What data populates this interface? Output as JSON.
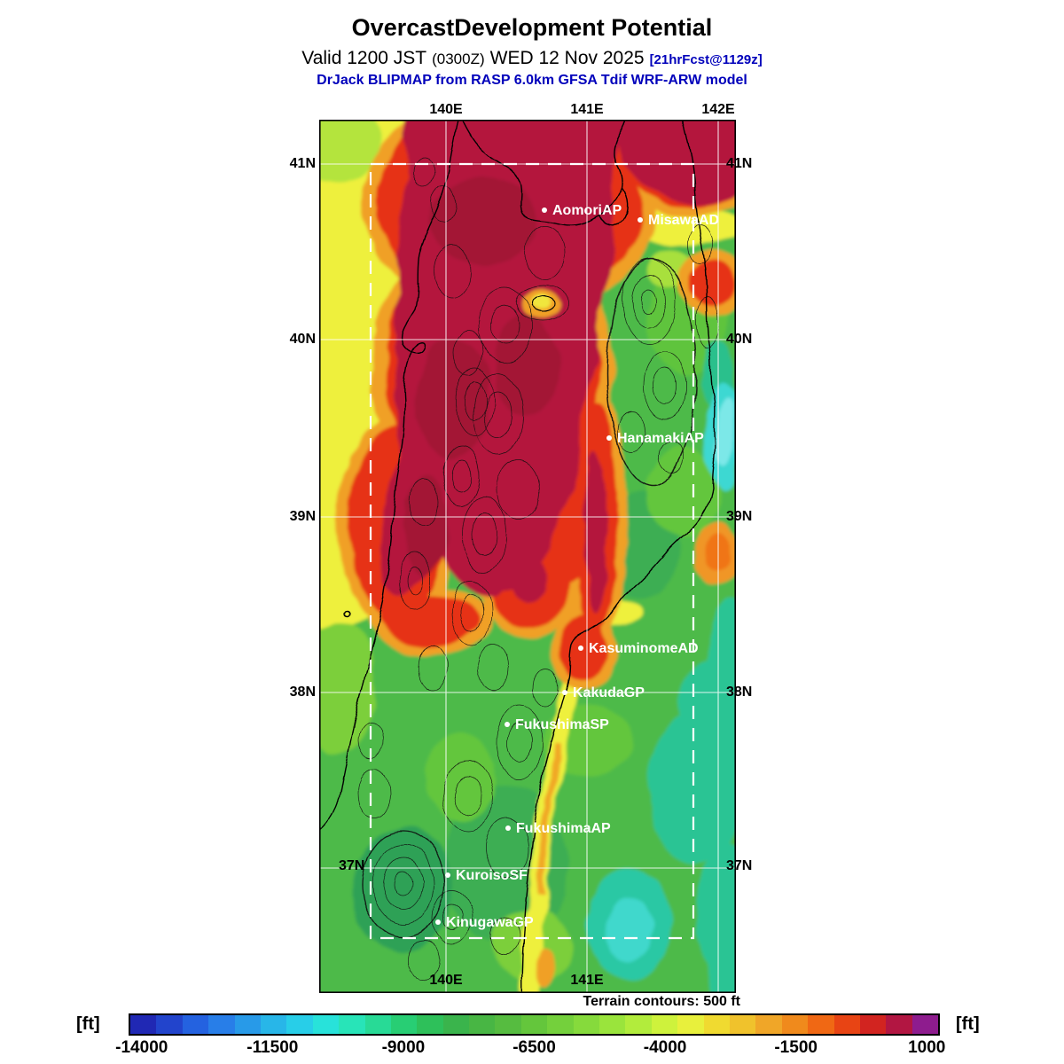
{
  "colors": {
    "accent_blue": "#0000bb"
  },
  "header": {
    "title": "OvercastDevelopment Potential",
    "valid_prefix": "Valid 1200 JST",
    "valid_zulu": "(0300Z)",
    "valid_date": "WED 12 Nov 2025",
    "valid_fcst": "[21hrFcst@1129z]",
    "model_line": "DrJack BLIPMAP from RASP 6.0km GFSA Tdif WRF-ARW model"
  },
  "map": {
    "lon_top": [
      "140E",
      "141E",
      "142E"
    ],
    "lon_bottom": [
      "140E",
      "141E"
    ],
    "lat_left": [
      "41N",
      "40N",
      "39N",
      "38N",
      "37N"
    ],
    "lat_right": [
      "41N",
      "40N",
      "39N",
      "38N",
      "37N"
    ],
    "stations": [
      {
        "name": "AomoriAP"
      },
      {
        "name": "MisawaAD"
      },
      {
        "name": "HanamakiAP"
      },
      {
        "name": "KasuminomeAD"
      },
      {
        "name": "KakudaGP"
      },
      {
        "name": "FukushimaSP"
      },
      {
        "name": "FukushimaAP"
      },
      {
        "name": "KuroisoSF"
      },
      {
        "name": "KinugawaGP"
      }
    ],
    "footnote": "Terrain contours: 500 ft"
  },
  "colorbar": {
    "unit": "[ft]",
    "min_edge": -14250,
    "max_edge": 1250,
    "ticks": [
      -14000,
      -11500,
      -9000,
      -6500,
      -4000,
      -1500,
      1000
    ],
    "colors": [
      "#2028b4",
      "#2244cc",
      "#2462e0",
      "#287ee8",
      "#289ae8",
      "#28b6e8",
      "#28cee8",
      "#28e2da",
      "#28e4b8",
      "#28da96",
      "#28ce74",
      "#2ec05a",
      "#3ab44c",
      "#48b644",
      "#56bc40",
      "#64c63c",
      "#74d03c",
      "#86da3c",
      "#9ae43c",
      "#b2ec3c",
      "#cef23c",
      "#e8f03c",
      "#f0da30",
      "#f0c22c",
      "#f0a628",
      "#f08a1c",
      "#f06814",
      "#e84414",
      "#d22420",
      "#b21642",
      "#8e1c8e"
    ]
  }
}
